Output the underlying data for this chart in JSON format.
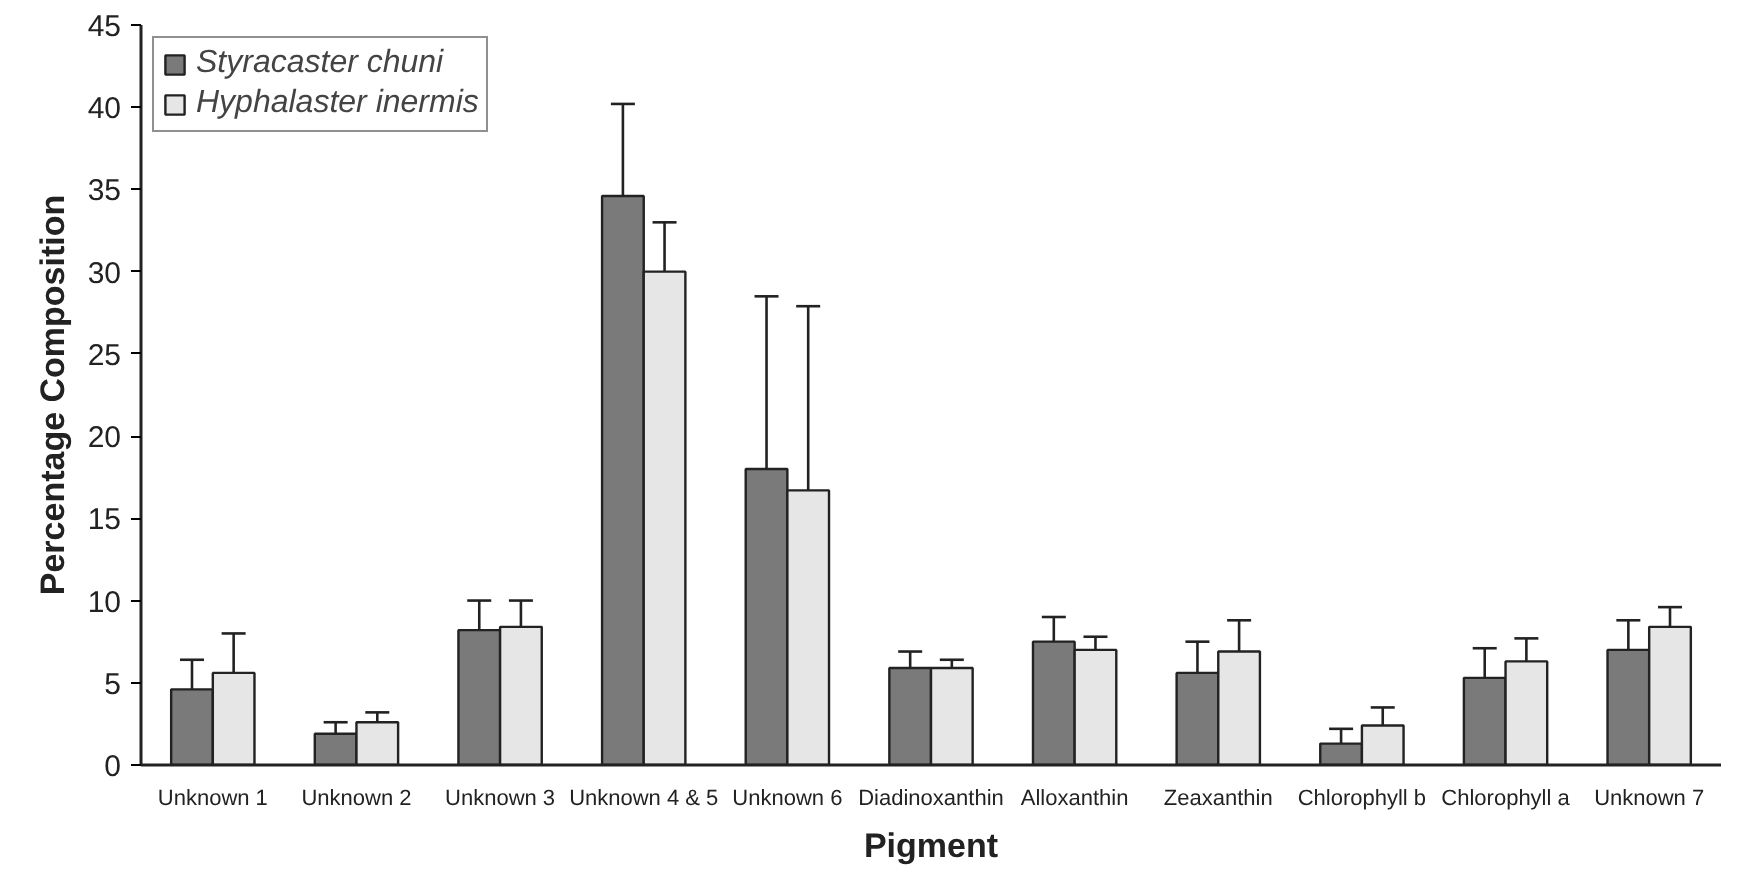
{
  "chart_data": {
    "type": "bar",
    "xlabel": "Pigment",
    "ylabel": "Percentage Composition",
    "categories": [
      "Unknown 1",
      "Unknown 2",
      "Unknown 3",
      "Unknown 4 & 5",
      "Unknown 6",
      "Diadinoxanthin",
      "Alloxanthin",
      "Zeaxanthin",
      "Chlorophyll b",
      "Chlorophyll a",
      "Unknown 7"
    ],
    "series": [
      {
        "name": "Styracaster chuni",
        "color": "#7a7a7a",
        "values": [
          4.6,
          1.9,
          8.2,
          34.6,
          18.0,
          5.9,
          7.5,
          5.6,
          1.3,
          5.3,
          7.0
        ],
        "errors": [
          1.8,
          0.7,
          1.8,
          5.6,
          10.5,
          1.0,
          1.5,
          1.9,
          0.9,
          1.8,
          1.8
        ]
      },
      {
        "name": "Hyphalaster inermis",
        "color": "#e6e6e6",
        "values": [
          5.6,
          2.6,
          8.4,
          30.0,
          16.7,
          5.9,
          7.0,
          6.9,
          2.4,
          6.3,
          8.4
        ],
        "errors": [
          2.4,
          0.6,
          1.6,
          3.0,
          11.2,
          0.5,
          0.8,
          1.9,
          1.1,
          1.4,
          1.2
        ]
      }
    ],
    "ylim": [
      0,
      45
    ],
    "yticks": [
      0,
      5,
      10,
      15,
      20,
      25,
      30,
      35,
      40,
      45
    ],
    "grid": false,
    "legend": "top left"
  }
}
